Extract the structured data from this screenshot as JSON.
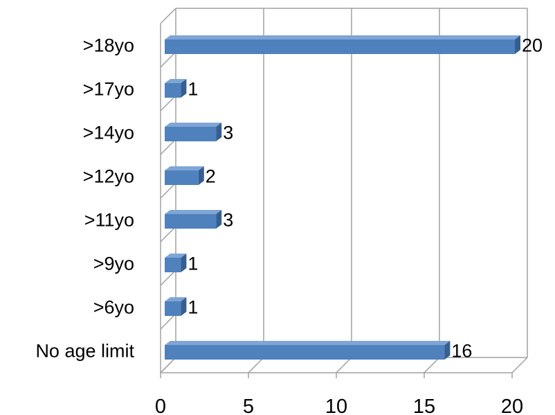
{
  "chart_data": {
    "type": "bar",
    "orientation": "horizontal",
    "style": "3d",
    "title": "",
    "xlabel": "",
    "ylabel": "",
    "categories": [
      ">18yo",
      ">17yo",
      ">14yo",
      ">12yo",
      ">11yo",
      ">9yo",
      ">6yo",
      "No age limit"
    ],
    "values": [
      20,
      1,
      3,
      2,
      3,
      1,
      1,
      16
    ],
    "data_labels": [
      "20",
      "1",
      "3",
      "2",
      "3",
      "1",
      "1",
      "16"
    ],
    "xlim": [
      0,
      20
    ],
    "x_ticks": [
      "0",
      "5",
      "10",
      "15",
      "20"
    ],
    "grid": true,
    "legend": "none",
    "colors": {
      "bar_front": "#4f81bd",
      "bar_top": "#7fa5d6",
      "bar_side": "#365f91",
      "gridline": "#a0a0a0"
    }
  }
}
